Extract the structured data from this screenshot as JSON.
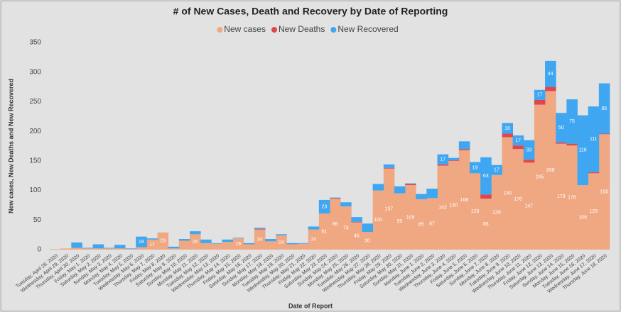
{
  "chart_data": {
    "type": "bar",
    "stacked": true,
    "title": "# of New Cases, Death and Recovery by Date of Reporting",
    "x_label": "Date of Report",
    "y_label": "New cases, New Deaths and New Recovered",
    "categories": [
      "Tuesday, April 28, 2020",
      "Wednesday, April 29, 2020",
      "Thursday, April 30, 2020",
      "Friday, May 1, 2020",
      "Saturday, May 2, 2020",
      "Sunday, May 3, 2020",
      "Monday, May 4, 2020",
      "Tuesday, May 5, 2020",
      "Wednesday, May 6, 2020",
      "Thursday, May 7, 2020",
      "Friday, May 8, 2020",
      "Saturday, May 9, 2020",
      "Sunday, May 10, 2020",
      "Monday, May 11, 2020",
      "Tuesday, May 12, 2020",
      "Wednesday, May 13, 2020",
      "Thursday, May 14, 2020",
      "Friday, May 15, 2020",
      "Saturday, May 16, 2020",
      "Sunday, May 17, 2020",
      "Monday, May 18, 2020",
      "Tuesday, May 19, 2020",
      "Wednesday, May 20, 2020",
      "Thursday, May 21, 2020",
      "Friday, May 22, 2020",
      "Saturday, May 23, 2020",
      "Sunday, May 24, 2020",
      "Monday, May 25, 2020",
      "Tuesday, May 26, 2020",
      "Wednesday, May 27, 2020",
      "Thursday, May 28, 2020",
      "Friday, May 29, 2020",
      "Saturday, May 30, 2020",
      "Sunday, May 31, 2020",
      "Monday, June 1, 2020",
      "Tuesday, June 2, 2020",
      "Wednesday, June 3, 2020",
      "Thursday, June 4, 2020",
      "Friday, June 5, 2020",
      "Saturday, June 6, 2020",
      "Sunday, June 7, 2020",
      "Monday, June 8, 2020",
      "Tuesday, June 9, 2020",
      "Wednesday, June 10, 2020",
      "Thursday, June 11, 2020",
      "Friday, June 12, 2020",
      "Saturday, June 13, 2020",
      "Sunday, June 14, 2020",
      "Monday, June 15, 2020",
      "Tuesday, June 16, 2020",
      "Wednesday, June 17, 2020",
      "Thursday, June 18, 2020"
    ],
    "series": [
      {
        "name": "New cases",
        "color": "#f0a882",
        "values": [
          1,
          2,
          3,
          2,
          2,
          2,
          2,
          1,
          4,
          17,
          29,
          2,
          15,
          26,
          11,
          10,
          13,
          19,
          9,
          34,
          14,
          24,
          9,
          10,
          34,
          61,
          86,
          73,
          46,
          30,
          100,
          137,
          95,
          109,
          85,
          87,
          142,
          150,
          168,
          129,
          86,
          126,
          190,
          170,
          147,
          245,
          268,
          179,
          176,
          109,
          129,
          195
        ]
      },
      {
        "name": "New Deaths",
        "color": "#e0474c",
        "values": [
          0,
          0,
          0,
          0,
          0,
          0,
          0,
          0,
          0,
          0,
          0,
          0,
          0,
          0,
          0,
          0,
          0,
          0,
          0,
          1,
          0,
          0,
          0,
          0,
          0,
          0,
          1,
          0,
          1,
          0,
          0,
          1,
          0,
          2,
          0,
          0,
          2,
          1,
          2,
          0,
          7,
          0,
          6,
          6,
          5,
          8,
          7,
          2,
          3,
          0,
          2,
          1
        ]
      },
      {
        "name": "New Recovered",
        "color": "#3fa6f2",
        "values": [
          0,
          0,
          9,
          1,
          7,
          1,
          6,
          1,
          18,
          2,
          0,
          3,
          3,
          5,
          6,
          1,
          4,
          1,
          2,
          2,
          4,
          2,
          2,
          1,
          5,
          23,
          1,
          7,
          8,
          14,
          11,
          6,
          12,
          1,
          9,
          16,
          17,
          4,
          13,
          19,
          63,
          17,
          18,
          17,
          33,
          17,
          44,
          50,
          75,
          118,
          111,
          85
        ]
      }
    ],
    "ylim": [
      0,
      350
    ],
    "yticks": [
      0,
      50,
      100,
      150,
      200,
      250,
      300,
      350
    ],
    "grid": false,
    "legend": "top"
  }
}
